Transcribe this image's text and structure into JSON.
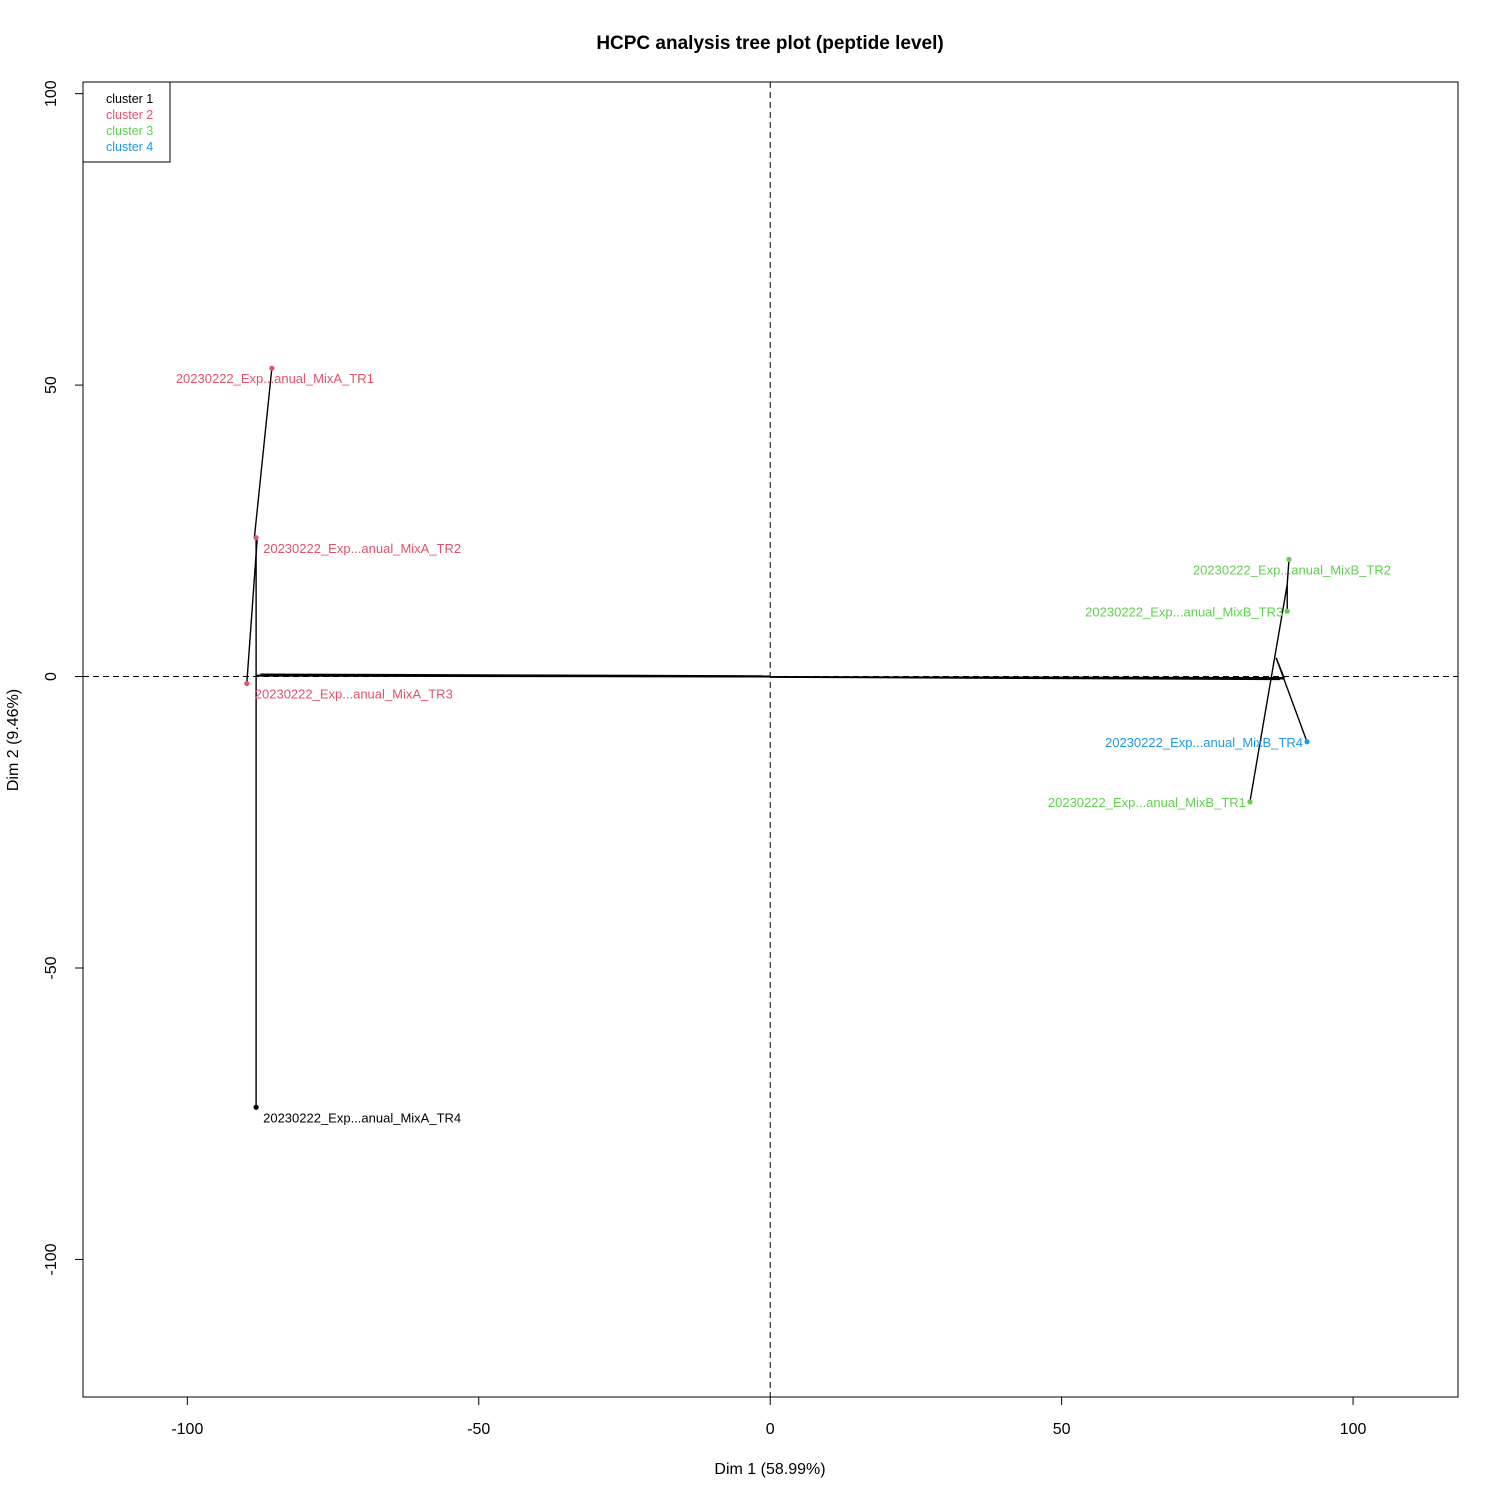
{
  "chart_data": {
    "type": "scatter",
    "title": "HCPC analysis tree plot (peptide level)",
    "xlabel": "Dim 1 (58.99%)",
    "ylabel": "Dim 2 (9.46%)",
    "xlim": [
      -117.9,
      118.0
    ],
    "ylim": [
      -123.6,
      102.0
    ],
    "xticks": [
      -100,
      -50,
      0,
      50,
      100
    ],
    "yticks": [
      -100,
      -50,
      0,
      50,
      100
    ],
    "grid": false,
    "reference_lines": {
      "x": 0,
      "y": 0,
      "style": "dashed"
    },
    "legend": {
      "position": "top-left",
      "entries": [
        {
          "label": "cluster 1",
          "color": "#000000"
        },
        {
          "label": "cluster 2",
          "color": "#DF536B"
        },
        {
          "label": "cluster 3",
          "color": "#61D04F"
        },
        {
          "label": "cluster 4",
          "color": "#2297E6"
        }
      ]
    },
    "points": [
      {
        "label": "20230222_Exp...anual_MixA_TR1",
        "x": -85.5,
        "y": 52.9,
        "cluster": 2,
        "color": "#DF536B",
        "label_side": "left"
      },
      {
        "label": "20230222_Exp...anual_MixA_TR2",
        "x": -88.2,
        "y": 23.8,
        "cluster": 2,
        "color": "#DF536B",
        "label_side": "right"
      },
      {
        "label": "20230222_Exp...anual_MixA_TR3",
        "x": -89.8,
        "y": -1.2,
        "cluster": 2,
        "color": "#DF536B",
        "label_side": "below"
      },
      {
        "label": "20230222_Exp...anual_MixA_TR4",
        "x": -88.2,
        "y": -73.9,
        "cluster": 1,
        "color": "#000000",
        "label_side": "right"
      },
      {
        "label": "20230222_Exp...anual_MixB_TR1",
        "x": 82.3,
        "y": -21.5,
        "cluster": 3,
        "color": "#61D04F",
        "label_side": "left"
      },
      {
        "label": "20230222_Exp...anual_MixB_TR2",
        "x": 89.0,
        "y": 20.1,
        "cluster": 3,
        "color": "#61D04F",
        "label_side": "below"
      },
      {
        "label": "20230222_Exp...anual_MixB_TR3",
        "x": 88.7,
        "y": 11.2,
        "cluster": 3,
        "color": "#61D04F",
        "label_side": "left"
      },
      {
        "label": "20230222_Exp...anual_MixB_TR4",
        "x": 92.1,
        "y": -11.2,
        "cluster": 4,
        "color": "#2297E6",
        "label_side": "left"
      }
    ],
    "tree_segments": [
      {
        "x1": -85.5,
        "y1": 52.9,
        "x2": -88.5,
        "y2": 23.8
      },
      {
        "x1": -89.8,
        "y1": -1.2,
        "x2": -88.0,
        "y2": 23.8
      },
      {
        "x1": -88.2,
        "y1": 23.8,
        "x2": -88.2,
        "y2": -73.9
      },
      {
        "x1": -88.2,
        "y1": 0.2,
        "x2": 88.2,
        "y2": -0.3
      },
      {
        "x1": -88.2,
        "y1": 0.1,
        "x2": 88.2,
        "y2": -0.2
      },
      {
        "x1": -87.5,
        "y1": 0.4,
        "x2": 0,
        "y2": 0.1
      },
      {
        "x1": 0,
        "y1": -0.1,
        "x2": 87.5,
        "y2": -0.5
      },
      {
        "x1": 89.0,
        "y1": 20.1,
        "x2": 88.7,
        "y2": 15.8
      },
      {
        "x1": 88.7,
        "y1": 11.2,
        "x2": 88.7,
        "y2": 15.8
      },
      {
        "x1": 82.3,
        "y1": -21.5,
        "x2": 88.7,
        "y2": 15.8
      },
      {
        "x1": 86.8,
        "y1": 3.2,
        "x2": 92.1,
        "y2": -11.2
      },
      {
        "x1": 86.8,
        "y1": 3.2,
        "x2": 88.2,
        "y2": -0.3
      },
      {
        "x1": 85.0,
        "y1": -0.2,
        "x2": 88.2,
        "y2": -0.4
      }
    ]
  }
}
